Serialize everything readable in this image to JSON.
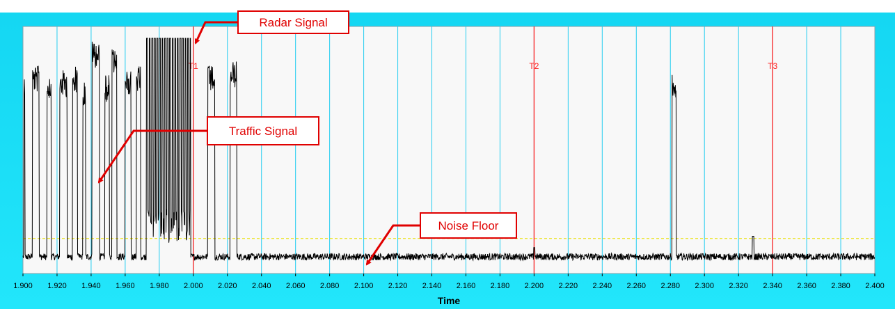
{
  "chart_data": {
    "type": "line",
    "title": "",
    "xlabel": "Time",
    "ylabel": "",
    "xlim": [
      1.9,
      2.4
    ],
    "ylim": [
      0,
      1
    ],
    "grid": true,
    "x_ticks": [
      "1.900",
      "1.920",
      "1.940",
      "1.960",
      "1.980",
      "2.000",
      "2.020",
      "2.040",
      "2.060",
      "2.080",
      "2.100",
      "2.120",
      "2.140",
      "2.160",
      "2.180",
      "2.200",
      "2.220",
      "2.240",
      "2.260",
      "2.280",
      "2.300",
      "2.320",
      "2.340",
      "2.360",
      "2.380",
      "2.400"
    ],
    "threshold": 0.12,
    "cursors": [
      {
        "label": "T1",
        "x": 2.0
      },
      {
        "label": "T2",
        "x": 2.2
      },
      {
        "label": "T3",
        "x": 2.34
      }
    ],
    "annotations": [
      {
        "text": "Radar Signal",
        "x": 2.0,
        "y": 0.98
      },
      {
        "text": "Traffic Signal",
        "x": 1.943,
        "y": 0.4
      },
      {
        "text": "Noise Floor",
        "x": 2.1,
        "y": 0.03
      }
    ],
    "series": [
      {
        "noise_floor": 0.04,
        "bursts": [
          {
            "x0": 1.9005,
            "x1": 1.9012,
            "y": 0.84
          },
          {
            "x0": 1.9055,
            "x1": 1.9095,
            "y": 0.88
          },
          {
            "x0": 1.914,
            "x1": 1.9165,
            "y": 0.85
          },
          {
            "x0": 1.9215,
            "x1": 1.926,
            "y": 0.86
          },
          {
            "x0": 1.929,
            "x1": 1.932,
            "y": 0.88
          },
          {
            "x0": 1.935,
            "x1": 1.9368,
            "y": 0.82
          },
          {
            "x0": 1.9405,
            "x1": 1.9448,
            "y": 0.99
          },
          {
            "x0": 1.948,
            "x1": 1.9508,
            "y": 0.84
          },
          {
            "x0": 1.9522,
            "x1": 1.955,
            "y": 0.96
          },
          {
            "x0": 1.96,
            "x1": 1.9635,
            "y": 0.87
          },
          {
            "x0": 1.9665,
            "x1": 1.969,
            "y": 0.88
          },
          {
            "x0": 1.9725,
            "x1": 1.9985,
            "y": 1.0,
            "pulsed": true
          },
          {
            "x0": 2.0085,
            "x1": 2.0125,
            "y": 0.88
          },
          {
            "x0": 2.0215,
            "x1": 2.0255,
            "y": 0.9
          },
          {
            "x0": 2.281,
            "x1": 2.2835,
            "y": 0.86
          }
        ],
        "spikes": [
          {
            "x": 2.3285,
            "y": 0.13
          },
          {
            "x": 2.2001,
            "y": 0.08
          }
        ]
      }
    ]
  }
}
